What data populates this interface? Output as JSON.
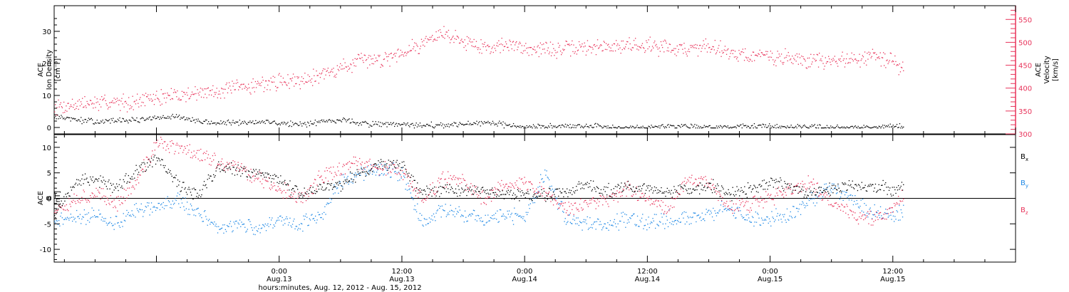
{
  "colors": {
    "density": "#000000",
    "velocity": "#e8335a",
    "bx": "#000000",
    "by": "#1e88e5",
    "bz": "#e8335a",
    "axis": "#000000"
  },
  "xaxis": {
    "label": "hours:minutes, Aug. 12, 2012 - Aug. 15, 2012",
    "tick_labels": [
      {
        "hour": 24,
        "time": "0:00",
        "date": "Aug.13"
      },
      {
        "hour": 36,
        "time": "12:00",
        "date": "Aug.13"
      },
      {
        "hour": 48,
        "time": "0:00",
        "date": "Aug.14"
      },
      {
        "hour": 60,
        "time": "12:00",
        "date": "Aug.14"
      },
      {
        "hour": 72,
        "time": "0:00",
        "date": "Aug.15"
      },
      {
        "hour": 84,
        "time": "12:00",
        "date": "Aug.15"
      }
    ]
  },
  "top_panel": {
    "left_label_lines": [
      "ACE",
      "Ion Density",
      "[cm⁻³]"
    ],
    "right_label_lines": [
      "ACE",
      "Velocity",
      "[km/s]"
    ]
  },
  "bottom_panel": {
    "left_label_lines": [
      "ACE",
      "B",
      "[nT]"
    ],
    "legend": [
      {
        "label": "B",
        "sub": "x",
        "color": "#000000"
      },
      {
        "label": "B",
        "sub": "y",
        "color": "#1e88e5"
      },
      {
        "label": "B",
        "sub": "z",
        "color": "#e8335a"
      }
    ]
  },
  "chart_data": [
    {
      "type": "scatter",
      "title": "",
      "xlabel": "hours:minutes, Aug. 12, 2012 - Aug. 15, 2012",
      "xlim": [
        2,
        96
      ],
      "ylim": [
        -2,
        38
      ],
      "y2lim": [
        300,
        580
      ],
      "yticks": [
        0,
        10,
        20,
        30
      ],
      "y2ticks": [
        300,
        350,
        400,
        450,
        500,
        550
      ],
      "series": [
        {
          "name": "Ion Density",
          "axis": "left",
          "x": [
            2,
            4,
            6,
            8,
            10,
            12,
            14,
            16,
            18,
            20,
            22,
            24,
            26,
            28,
            30,
            32,
            34,
            36,
            38,
            40,
            42,
            44,
            46,
            48,
            50,
            52,
            54,
            56,
            58,
            60,
            62,
            64,
            66,
            68,
            70,
            72,
            74,
            76,
            78,
            80,
            82,
            84,
            85
          ],
          "values": [
            3.5,
            2.5,
            2.0,
            2.2,
            2.5,
            3.0,
            3.5,
            2.0,
            1.5,
            1.5,
            2.0,
            1.5,
            1.0,
            2.0,
            2.5,
            1.5,
            1.0,
            1.0,
            0.8,
            0.8,
            1.0,
            1.5,
            1.0,
            0.5,
            0.5,
            0.4,
            0.5,
            0.4,
            0.3,
            0.3,
            0.5,
            0.5,
            0.3,
            0.2,
            0.3,
            0.3,
            0.2,
            0.2,
            0.3,
            0.2,
            0.3,
            0.5,
            0.2
          ]
        },
        {
          "name": "Velocity",
          "axis": "right",
          "x": [
            2,
            4,
            6,
            8,
            10,
            12,
            14,
            16,
            18,
            20,
            22,
            24,
            26,
            28,
            30,
            32,
            34,
            36,
            38,
            40,
            42,
            44,
            46,
            48,
            50,
            52,
            54,
            56,
            58,
            60,
            62,
            64,
            66,
            68,
            70,
            72,
            74,
            76,
            78,
            80,
            82,
            84,
            85
          ],
          "values": [
            360,
            365,
            368,
            370,
            372,
            380,
            385,
            390,
            395,
            400,
            410,
            415,
            420,
            430,
            445,
            460,
            465,
            480,
            500,
            520,
            505,
            490,
            495,
            490,
            485,
            485,
            490,
            490,
            495,
            495,
            490,
            485,
            495,
            480,
            470,
            470,
            465,
            460,
            460,
            465,
            470,
            460,
            440
          ]
        }
      ]
    },
    {
      "type": "scatter",
      "title": "",
      "xlabel": "hours:minutes, Aug. 12, 2012 - Aug. 15, 2012",
      "ylabel": "B [nT]",
      "xlim": [
        2,
        96
      ],
      "ylim": [
        -12.5,
        12.5
      ],
      "yticks": [
        -10,
        -5,
        0,
        5,
        10
      ],
      "zero_line": true,
      "series": [
        {
          "name": "Bx",
          "x": [
            2,
            4,
            6,
            8,
            10,
            12,
            14,
            16,
            18,
            20,
            22,
            24,
            26,
            28,
            30,
            32,
            34,
            36,
            38,
            40,
            42,
            44,
            46,
            48,
            50,
            52,
            54,
            56,
            58,
            60,
            62,
            64,
            66,
            68,
            70,
            72,
            74,
            76,
            78,
            80,
            82,
            84,
            85
          ],
          "values": [
            -3,
            3.5,
            4,
            2,
            5,
            8,
            3,
            1,
            6,
            5.5,
            5,
            4,
            1,
            2,
            3,
            5,
            7,
            6.5,
            1,
            2,
            1.5,
            2,
            1,
            1,
            0.5,
            1.5,
            2.5,
            1.5,
            2,
            2,
            1.5,
            1.5,
            2.5,
            1,
            2,
            3,
            2.5,
            1,
            2,
            2.5,
            2,
            2,
            2.5
          ]
        },
        {
          "name": "By",
          "x": [
            2,
            4,
            6,
            8,
            10,
            12,
            14,
            16,
            18,
            20,
            22,
            24,
            26,
            28,
            30,
            32,
            34,
            36,
            38,
            40,
            42,
            44,
            46,
            48,
            50,
            52,
            54,
            56,
            58,
            60,
            62,
            64,
            66,
            68,
            70,
            72,
            74,
            76,
            78,
            80,
            82,
            84,
            85
          ],
          "values": [
            -4,
            -4,
            -3,
            -5,
            -2,
            -2,
            0,
            -3,
            -6,
            -5,
            -6,
            -4,
            -5,
            -3,
            3,
            5,
            6,
            5,
            -5,
            -2,
            -3,
            -4,
            -3,
            -4,
            5,
            -4,
            -5,
            -5,
            -4,
            -5,
            -4,
            -4,
            -3,
            -2,
            -4,
            -4,
            -3,
            0,
            2,
            0,
            -3,
            -3,
            -2
          ]
        },
        {
          "name": "Bz",
          "x": [
            2,
            4,
            6,
            8,
            10,
            12,
            14,
            16,
            18,
            20,
            22,
            24,
            26,
            28,
            30,
            32,
            34,
            36,
            38,
            40,
            42,
            44,
            46,
            48,
            50,
            52,
            54,
            56,
            58,
            60,
            62,
            64,
            66,
            68,
            70,
            72,
            74,
            76,
            78,
            80,
            82,
            84,
            85
          ],
          "values": [
            -2,
            0,
            1,
            -1,
            3,
            11,
            10,
            9,
            7,
            6,
            4,
            2,
            0,
            4,
            6,
            7,
            6,
            5,
            0,
            4,
            3,
            0,
            3,
            3,
            1,
            -2,
            -1,
            0,
            2,
            0,
            -2,
            4,
            3,
            -2,
            -1,
            0,
            2,
            3,
            -1,
            -3,
            -4,
            -2,
            1
          ]
        }
      ]
    }
  ]
}
